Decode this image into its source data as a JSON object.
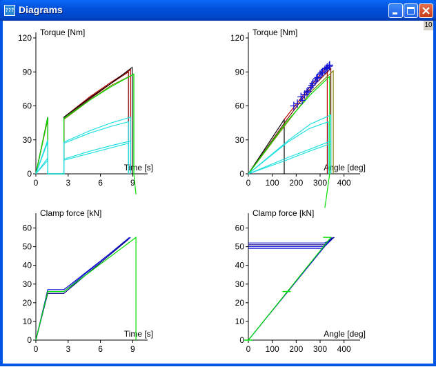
{
  "window": {
    "title": "Diagrams",
    "app_icon_text": "???",
    "badge": "10"
  },
  "colors": {
    "black": "#000000",
    "red": "#c00000",
    "dark_red": "#800000",
    "olive": "#808000",
    "green": "#00e000",
    "cyan": "#20e0e0",
    "blue": "#1010d0",
    "navy": "#000080"
  },
  "chart_data": [
    {
      "id": "torque-time",
      "type": "line",
      "ylabel": "Torque [Nm]",
      "xlabel": "Time [s]",
      "xlim": [
        0,
        10
      ],
      "ylim": [
        0,
        120
      ],
      "xticks": [
        0,
        3,
        6,
        9
      ],
      "yticks": [
        0,
        30,
        60,
        90,
        120
      ],
      "xtick_labels": [
        "0",
        "3",
        "6",
        "9"
      ],
      "ytick_labels": [
        "0",
        "30",
        "60",
        "90",
        "120"
      ],
      "series": [
        {
          "color": "red",
          "points": [
            [
              0,
              0
            ],
            [
              1.1,
              50
            ],
            [
              1.1,
              0
            ],
            [
              2.6,
              0
            ],
            [
              2.6,
              50
            ],
            [
              5,
              68
            ],
            [
              7,
              81
            ],
            [
              8.8,
              92
            ],
            [
              8.8,
              0
            ]
          ]
        },
        {
          "color": "dark_red",
          "points": [
            [
              0,
              0
            ],
            [
              1.1,
              49
            ],
            [
              1.1,
              0
            ],
            [
              2.6,
              0
            ],
            [
              2.6,
              49
            ],
            [
              5,
              66
            ],
            [
              7,
              80
            ],
            [
              8.6,
              90
            ],
            [
              8.6,
              0
            ]
          ]
        },
        {
          "color": "black",
          "points": [
            [
              0,
              0
            ],
            [
              1.1,
              50
            ],
            [
              1.1,
              0
            ],
            [
              2.6,
              0
            ],
            [
              2.6,
              50
            ],
            [
              5,
              67
            ],
            [
              7,
              80
            ],
            [
              8.95,
              94
            ],
            [
              8.95,
              0
            ]
          ]
        },
        {
          "color": "olive",
          "points": [
            [
              0,
              0
            ],
            [
              1.1,
              48
            ],
            [
              1.1,
              0
            ],
            [
              2.6,
              0
            ],
            [
              2.6,
              48
            ],
            [
              5,
              65
            ],
            [
              7,
              78
            ],
            [
              9.1,
              88
            ],
            [
              9.1,
              0
            ]
          ]
        },
        {
          "color": "green",
          "points": [
            [
              0,
              0
            ],
            [
              1.1,
              50
            ],
            [
              1.1,
              0
            ],
            [
              2.6,
              0
            ],
            [
              2.6,
              49
            ],
            [
              5,
              65
            ],
            [
              7,
              77
            ],
            [
              9.1,
              88
            ],
            [
              9.1,
              0
            ],
            [
              9.3,
              -18
            ]
          ]
        },
        {
          "color": "cyan",
          "points": [
            [
              0,
              0
            ],
            [
              1.1,
              30
            ],
            [
              1.1,
              0
            ],
            [
              2.6,
              0
            ],
            [
              2.6,
              28
            ],
            [
              5,
              38
            ],
            [
              7,
              45
            ],
            [
              8.8,
              50
            ],
            [
              8.8,
              0
            ]
          ]
        },
        {
          "color": "cyan",
          "points": [
            [
              0,
              0
            ],
            [
              1.1,
              28
            ],
            [
              1.1,
              0
            ],
            [
              2.6,
              0
            ],
            [
              2.6,
              27
            ],
            [
              5,
              36
            ],
            [
              7,
              42
            ],
            [
              8.6,
              46
            ],
            [
              8.6,
              0
            ]
          ]
        },
        {
          "color": "cyan",
          "points": [
            [
              0,
              0
            ],
            [
              1.1,
              14
            ],
            [
              1.1,
              0
            ],
            [
              2.6,
              0
            ],
            [
              2.6,
              13
            ],
            [
              5,
              20
            ],
            [
              7,
              25
            ],
            [
              8.8,
              29
            ],
            [
              8.8,
              0
            ]
          ]
        },
        {
          "color": "cyan",
          "points": [
            [
              0,
              0
            ],
            [
              1.1,
              12
            ],
            [
              1.1,
              0
            ],
            [
              2.6,
              0
            ],
            [
              2.6,
              12
            ],
            [
              5,
              18
            ],
            [
              7,
              23
            ],
            [
              8.6,
              27
            ],
            [
              8.6,
              0
            ]
          ]
        }
      ]
    },
    {
      "id": "torque-angle",
      "type": "line",
      "ylabel": "Torque [Nm]",
      "xlabel": "Angle [deg]",
      "xlim": [
        0,
        450
      ],
      "ylim": [
        0,
        120
      ],
      "xticks": [
        0,
        100,
        200,
        300,
        400
      ],
      "yticks": [
        0,
        30,
        60,
        90,
        120
      ],
      "xtick_labels": [
        "0",
        "100",
        "200",
        "300",
        "400"
      ],
      "ytick_labels": [
        "0",
        "30",
        "60",
        "90",
        "120"
      ],
      "series": [
        {
          "color": "black",
          "points": [
            [
              0,
              0
            ],
            [
              150,
              48
            ],
            [
              150,
              0
            ]
          ]
        },
        {
          "color": "red",
          "points": [
            [
              150,
              48
            ],
            [
              250,
              75
            ],
            [
              330,
              95
            ],
            [
              330,
              0
            ]
          ]
        },
        {
          "color": "dark_red",
          "points": [
            [
              0,
              0
            ],
            [
              158,
              47
            ],
            [
              250,
              73
            ],
            [
              345,
              93
            ],
            [
              345,
              0
            ]
          ]
        },
        {
          "color": "olive",
          "points": [
            [
              0,
              0
            ],
            [
              165,
              46
            ],
            [
              260,
              72
            ],
            [
              355,
              91
            ],
            [
              355,
              0
            ]
          ]
        },
        {
          "color": "green",
          "points": [
            [
              0,
              0
            ],
            [
              160,
              46
            ],
            [
              260,
              70
            ],
            [
              340,
              86
            ],
            [
              340,
              0
            ],
            [
              320,
              -30
            ]
          ]
        },
        {
          "color": "cyan",
          "points": [
            [
              0,
              0
            ],
            [
              170,
              30
            ],
            [
              260,
              44
            ],
            [
              345,
              52
            ],
            [
              345,
              0
            ]
          ]
        },
        {
          "color": "cyan",
          "points": [
            [
              0,
              0
            ],
            [
              165,
              28
            ],
            [
              255,
              40
            ],
            [
              335,
              46
            ],
            [
              335,
              0
            ]
          ]
        },
        {
          "color": "cyan",
          "points": [
            [
              0,
              0
            ],
            [
              160,
              14
            ],
            [
              260,
              22
            ],
            [
              345,
              29
            ],
            [
              345,
              0
            ]
          ]
        },
        {
          "color": "cyan",
          "points": [
            [
              0,
              0
            ],
            [
              158,
              12
            ],
            [
              255,
              20
            ],
            [
              335,
              26
            ],
            [
              335,
              0
            ]
          ]
        }
      ],
      "markers": {
        "color": "blue",
        "points": [
          [
            190,
            60
          ],
          [
            205,
            62
          ],
          [
            220,
            68
          ],
          [
            235,
            70
          ],
          [
            250,
            73
          ],
          [
            260,
            76
          ],
          [
            270,
            80
          ],
          [
            280,
            82
          ],
          [
            290,
            85
          ],
          [
            300,
            88
          ],
          [
            310,
            90
          ],
          [
            320,
            92
          ],
          [
            330,
            94
          ],
          [
            340,
            96
          ],
          [
            225,
            65
          ],
          [
            245,
            72
          ],
          [
            265,
            78
          ],
          [
            285,
            84
          ],
          [
            305,
            89
          ],
          [
            325,
            93
          ],
          [
            338,
            95
          ]
        ]
      }
    },
    {
      "id": "clamp-time",
      "type": "line",
      "ylabel": "Clamp force [kN]",
      "xlabel": "Time [s]",
      "xlim": [
        0,
        10
      ],
      "ylim": [
        0,
        65
      ],
      "xticks": [
        0,
        3,
        6,
        9
      ],
      "yticks": [
        0,
        10,
        20,
        30,
        40,
        50,
        60
      ],
      "xtick_labels": [
        "0",
        "3",
        "6",
        "9"
      ],
      "ytick_labels": [
        "0",
        "10",
        "20",
        "30",
        "40",
        "50",
        "60"
      ],
      "series": [
        {
          "color": "blue",
          "points": [
            [
              0,
              0
            ],
            [
              1.1,
              27
            ],
            [
              2.6,
              27
            ],
            [
              8.8,
              55
            ]
          ]
        },
        {
          "color": "navy",
          "points": [
            [
              0,
              0
            ],
            [
              1.1,
              25
            ],
            [
              2.6,
              25
            ],
            [
              8.6,
              54
            ]
          ]
        },
        {
          "color": "blue",
          "points": [
            [
              0,
              0
            ],
            [
              1.1,
              26
            ],
            [
              2.6,
              26
            ],
            [
              8.7,
              55
            ]
          ]
        },
        {
          "color": "green",
          "points": [
            [
              0,
              0
            ],
            [
              1.1,
              26
            ],
            [
              2.6,
              26
            ],
            [
              9.3,
              55
            ],
            [
              9.3,
              0
            ]
          ]
        }
      ]
    },
    {
      "id": "clamp-angle",
      "type": "line",
      "ylabel": "Clamp force [kN]",
      "xlabel": "Angle [deg]",
      "xlim": [
        0,
        450
      ],
      "ylim": [
        0,
        65
      ],
      "xticks": [
        0,
        100,
        200,
        300,
        400
      ],
      "yticks": [
        0,
        10,
        20,
        30,
        40,
        50,
        60
      ],
      "xtick_labels": [
        "0",
        "100",
        "200",
        "300",
        "400"
      ],
      "ytick_labels": [
        "0",
        "10",
        "20",
        "30",
        "40",
        "50",
        "60"
      ],
      "series": [
        {
          "color": "blue",
          "points": [
            [
              0,
              52
            ],
            [
              320,
              52
            ],
            [
              360,
              55
            ]
          ]
        },
        {
          "color": "blue",
          "points": [
            [
              0,
              50
            ],
            [
              315,
              50
            ],
            [
              355,
              55
            ]
          ]
        },
        {
          "color": "blue",
          "points": [
            [
              0,
              49
            ],
            [
              310,
              49
            ],
            [
              350,
              54
            ]
          ]
        },
        {
          "color": "navy",
          "points": [
            [
              0,
              51
            ],
            [
              318,
              51
            ],
            [
              358,
              55
            ]
          ]
        },
        {
          "color": "blue",
          "points": [
            [
              0,
              0
            ],
            [
              350,
              55
            ]
          ]
        },
        {
          "color": "green",
          "points": [
            [
              0,
              0
            ],
            [
              345,
              55
            ]
          ]
        }
      ],
      "green_ticks": [
        [
          0,
          0
        ],
        [
          160,
          26
        ],
        [
          330,
          55
        ]
      ]
    }
  ]
}
